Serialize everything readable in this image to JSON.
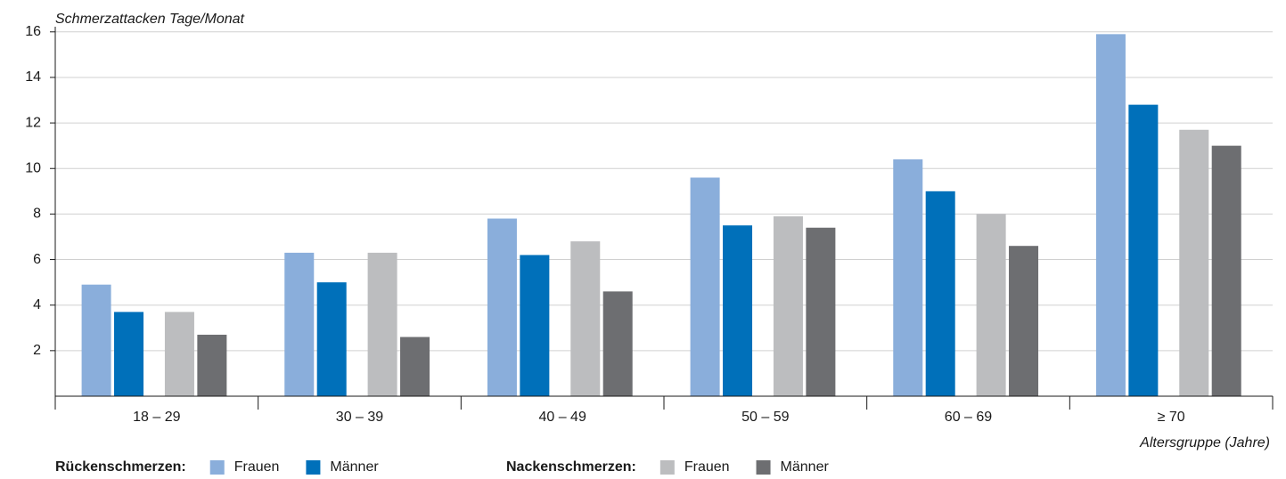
{
  "chart_data": {
    "type": "bar",
    "y_label": "Schmerzattacken Tage/Monat",
    "x_label": "Altersgruppe (Jahre)",
    "categories": [
      "18 – 29",
      "30 – 39",
      "40 – 49",
      "50 – 59",
      "60 – 69",
      "≥ 70"
    ],
    "series_groups": [
      {
        "label": "Rückenschmerzen:",
        "series": [
          {
            "name": "Frauen",
            "color": "#8aaedb",
            "values": [
              4.9,
              6.3,
              7.8,
              9.6,
              10.4,
              15.9
            ]
          },
          {
            "name": "Männer",
            "color": "#0070ba",
            "values": [
              3.7,
              5.0,
              6.2,
              7.5,
              9.0,
              12.8
            ]
          }
        ]
      },
      {
        "label": "Nackenschmerzen:",
        "series": [
          {
            "name": "Frauen",
            "color": "#bcbdbf",
            "values": [
              3.7,
              6.3,
              6.8,
              7.9,
              8.0,
              11.7
            ]
          },
          {
            "name": "Männer",
            "color": "#6d6e71",
            "values": [
              2.7,
              2.6,
              4.6,
              7.4,
              6.6,
              11.0
            ]
          }
        ]
      }
    ],
    "ylim": [
      0,
      16.5
    ],
    "yticks": [
      2,
      4,
      6,
      8,
      10,
      12,
      14,
      16
    ],
    "grid": true
  }
}
